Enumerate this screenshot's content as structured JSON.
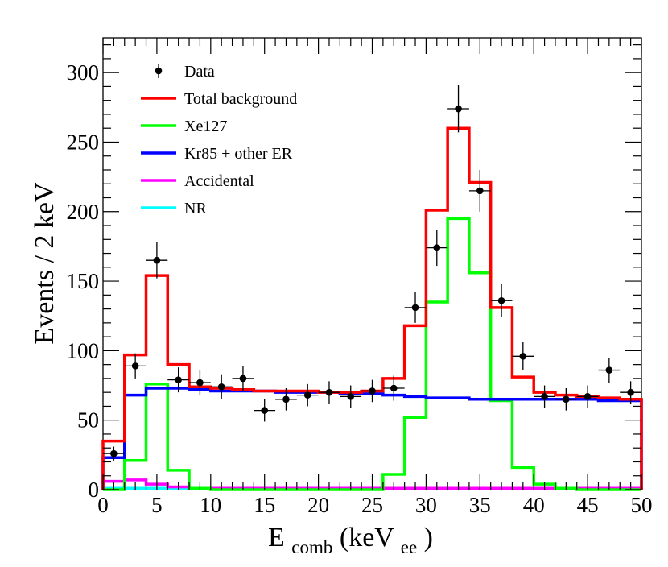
{
  "chart_data": {
    "type": "histogram",
    "title": "",
    "xlabel": {
      "main": "E",
      "sub": "comb",
      "mid": " (keV",
      "sub2": "ee",
      "end": ")"
    },
    "ylabel": "Events / 2 keV",
    "xlim": [
      0,
      50
    ],
    "ylim": [
      0,
      325
    ],
    "x_ticks": [
      0,
      5,
      10,
      15,
      20,
      25,
      30,
      35,
      40,
      45,
      50
    ],
    "x_tick_labels": [
      "0",
      "5",
      "10",
      "15",
      "20",
      "25",
      "30",
      "35",
      "40",
      "45",
      "50"
    ],
    "y_ticks": [
      0,
      50,
      100,
      150,
      200,
      250,
      300
    ],
    "y_tick_labels": [
      "0",
      "50",
      "100",
      "150",
      "200",
      "250",
      "300"
    ],
    "bin_edges": [
      0,
      2,
      4,
      6,
      8,
      10,
      12,
      14,
      16,
      18,
      20,
      22,
      24,
      26,
      28,
      30,
      32,
      34,
      36,
      38,
      40,
      42,
      44,
      46,
      48,
      50
    ],
    "legend_position": "top-left",
    "series": [
      {
        "name": "Total background",
        "key": "total",
        "color": "#ff0000",
        "values": [
          35,
          97,
          154,
          90,
          74,
          73,
          72,
          71,
          71,
          71,
          70,
          70,
          71,
          80,
          118,
          201,
          260,
          221,
          131,
          81,
          70,
          68,
          67,
          66,
          65
        ]
      },
      {
        "name": "Xe127",
        "key": "xe127",
        "color": "#00ff00",
        "values": [
          0,
          21,
          76,
          14,
          1,
          0,
          0,
          0,
          0,
          0,
          0,
          0,
          0,
          11,
          52,
          135,
          195,
          156,
          64,
          16,
          4,
          1,
          0,
          0,
          0
        ]
      },
      {
        "name": "Kr85 + other ER",
        "key": "kr85",
        "color": "#0000ff",
        "values": [
          23,
          68,
          73,
          73,
          72,
          71,
          71,
          71,
          70,
          70,
          70,
          69,
          69,
          68,
          67,
          66,
          66,
          65,
          65,
          65,
          65,
          65,
          65,
          64,
          64
        ]
      },
      {
        "name": "Accidental",
        "key": "accidental",
        "color": "#ff00ff",
        "values": [
          6,
          7,
          4,
          2,
          1,
          1,
          1,
          1,
          1,
          1,
          1,
          1,
          1,
          1,
          1,
          1,
          1,
          1,
          1,
          1,
          1,
          1,
          1,
          1,
          1
        ]
      },
      {
        "name": "NR",
        "key": "nr",
        "color": "#00ffff",
        "values": [
          1,
          1,
          1,
          1,
          1,
          1,
          1,
          1,
          1,
          1,
          1,
          1,
          1,
          1,
          1,
          1,
          1,
          1,
          1,
          1,
          1,
          1,
          1,
          1,
          1
        ]
      }
    ],
    "data_points": {
      "name": "Data",
      "x": [
        1,
        3,
        5,
        7,
        9,
        11,
        13,
        15,
        17,
        19,
        21,
        23,
        25,
        27,
        29,
        31,
        33,
        35,
        37,
        39,
        41,
        43,
        45,
        47,
        49
      ],
      "y": [
        26,
        89,
        165,
        79,
        77,
        74,
        80,
        57,
        65,
        68,
        70,
        67,
        71,
        73,
        131,
        174,
        274,
        215,
        136,
        96,
        67,
        65,
        67,
        86,
        70
      ],
      "y_err": [
        5,
        9,
        13,
        9,
        9,
        9,
        9,
        8,
        8,
        8,
        8,
        8,
        8,
        9,
        11,
        13,
        17,
        15,
        12,
        10,
        8,
        8,
        8,
        9,
        8
      ],
      "x_err": 1
    },
    "legend": [
      {
        "label": "Data",
        "marker": "point",
        "color": "#000000"
      },
      {
        "label": "Total background",
        "marker": "line",
        "color": "#ff0000"
      },
      {
        "label": "Xe127",
        "marker": "line",
        "color": "#00ff00"
      },
      {
        "label": "Kr85 + other ER",
        "marker": "line",
        "color": "#0000ff"
      },
      {
        "label": "Accidental",
        "marker": "line",
        "color": "#ff00ff"
      },
      {
        "label": "NR",
        "marker": "line",
        "color": "#00ffff"
      }
    ]
  }
}
